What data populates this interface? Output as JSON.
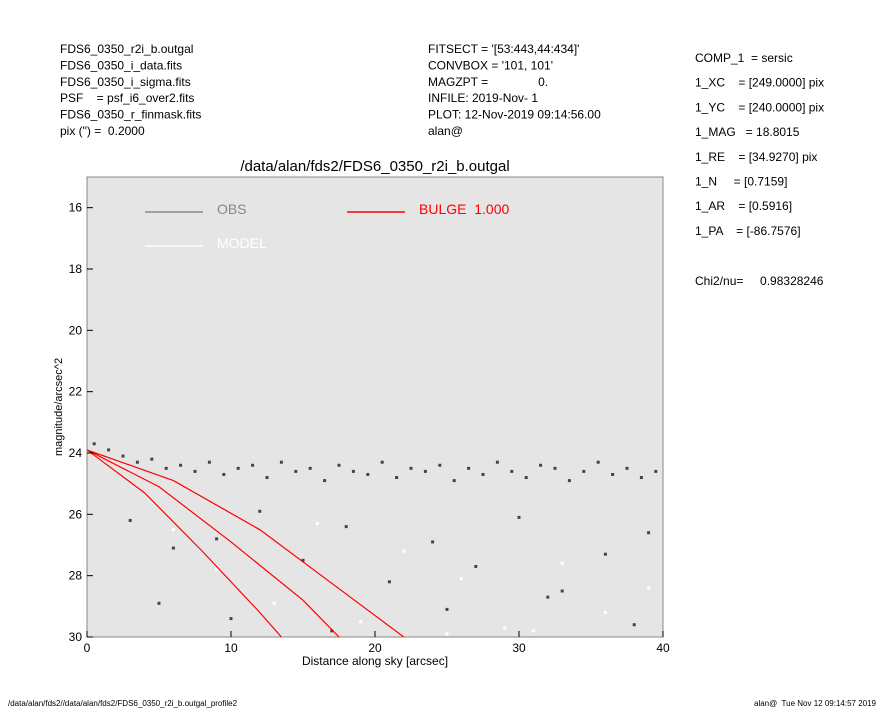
{
  "header": {
    "left": [
      "FDS6_0350_r2i_b.outgal",
      "FDS6_0350_i_data.fits",
      "FDS6_0350_i_sigma.fits",
      "PSF    = psf_i6_over2.fits",
      "FDS6_0350_r_finmask.fits",
      "pix (\") =  0.2000"
    ],
    "middle": [
      "FITSECT = '[53:443,44:434]'",
      "CONVBOX = '101, 101'",
      "MAGZPT =               0.",
      "INFILE: 2019-Nov- 1",
      "PLOT: 12-Nov-2019 09:14:56.00",
      "alan@"
    ],
    "right": [
      "COMP_1  = sersic",
      "1_XC    = [249.0000] pix",
      "1_YC    = [240.0000] pix",
      "1_MAG   = 18.8015",
      "1_RE    = [34.9270] pix",
      "1_N     = [0.7159]",
      "1_AR    = [0.5916]",
      "1_PA    = [-86.7576]"
    ],
    "chi2": "Chi2/nu=     0.98328246"
  },
  "footer": {
    "left": "/data/alan/fds2//data/alan/fds2/FDS6_0350_r2i_b.outgal_profile2",
    "right": "alan@  Tue Nov 12 09:14:57 2019"
  },
  "chart_data": {
    "type": "scatter",
    "title": "/data/alan/fds2/FDS6_0350_r2i_b.outgal",
    "x_label": "Distance along sky [arcsec]",
    "y_label": "magnitude/arcsec^2",
    "xlim": [
      0,
      40
    ],
    "ylim": [
      15,
      30
    ],
    "y_inverted": true,
    "xticks": [
      0,
      10,
      20,
      30,
      40
    ],
    "yticks": [
      16,
      18,
      20,
      22,
      24,
      26,
      28,
      30
    ],
    "background": "#e5e5e5",
    "series": [
      {
        "name": "OBS",
        "color": "#888888",
        "mark_color": "#444444",
        "mode": "points",
        "x": [
          0.5,
          1.5,
          2.5,
          3.5,
          4.5,
          5.5,
          6.5,
          7.5,
          8.5,
          9.5,
          10.5,
          11.5,
          12.5,
          13.5,
          14.5,
          15.5,
          16.5,
          17.5,
          18.5,
          19.5,
          20.5,
          21.5,
          22.5,
          23.5,
          24.5,
          25.5,
          26.5,
          27.5,
          28.5,
          29.5,
          30.5,
          31.5,
          32.5,
          33.5,
          34.5,
          35.5,
          36.5,
          37.5,
          38.5,
          39.5,
          3,
          6,
          9,
          12,
          15,
          18,
          21,
          24,
          27,
          30,
          33,
          36,
          39,
          5,
          10,
          17,
          25,
          32,
          38
        ],
        "y": [
          23.7,
          23.9,
          24.1,
          24.3,
          24.2,
          24.5,
          24.4,
          24.6,
          24.3,
          24.7,
          24.5,
          24.4,
          24.8,
          24.3,
          24.6,
          24.5,
          24.9,
          24.4,
          24.6,
          24.7,
          24.3,
          24.8,
          24.5,
          24.6,
          24.4,
          24.9,
          24.5,
          24.7,
          24.3,
          24.6,
          24.8,
          24.4,
          24.5,
          24.9,
          24.6,
          24.3,
          24.7,
          24.5,
          24.8,
          24.6,
          26.2,
          27.1,
          26.8,
          25.9,
          27.5,
          26.4,
          28.2,
          26.9,
          27.7,
          26.1,
          28.5,
          27.3,
          26.6,
          28.9,
          29.4,
          29.8,
          29.1,
          28.7,
          29.6
        ]
      },
      {
        "name": "MODEL",
        "color": "#ffffff",
        "mark_color": "#ffffff",
        "mode": "points",
        "x": [
          6,
          9,
          13,
          16,
          19,
          22,
          26,
          29,
          33,
          36,
          39,
          25,
          31
        ],
        "y": [
          26.5,
          27.8,
          28.9,
          26.3,
          29.5,
          27.2,
          28.1,
          29.7,
          27.6,
          29.2,
          28.4,
          29.9,
          29.8
        ]
      },
      {
        "name": "BULGE  1.000",
        "color": "#ff0000",
        "mark_color": "#ff0000",
        "mode": "line",
        "x": [
          0,
          4,
          8,
          12,
          13.5,
          null,
          0,
          5,
          10,
          15,
          17.5,
          null,
          0,
          6,
          12,
          18,
          22
        ],
        "y": [
          23.9,
          25.3,
          27.2,
          29.2,
          30,
          null,
          23.9,
          25.1,
          26.9,
          28.8,
          30,
          null,
          23.9,
          24.9,
          26.5,
          28.6,
          30
        ]
      }
    ]
  }
}
